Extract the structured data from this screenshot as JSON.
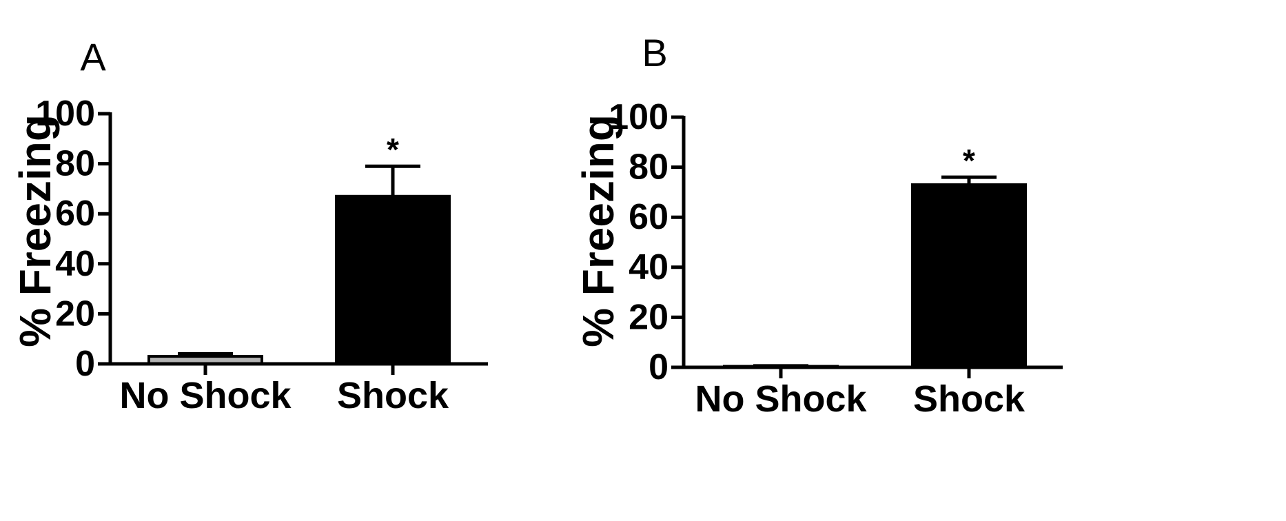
{
  "chart_data": [
    {
      "type": "bar",
      "panel": "A",
      "ylabel": "% Freezing",
      "xlabel": "",
      "title": "",
      "ylim": [
        0,
        100
      ],
      "yticks": [
        "0",
        "20",
        "40",
        "60",
        "80",
        "100"
      ],
      "categories": [
        "No Shock",
        "Shock"
      ],
      "values": [
        3,
        67
      ],
      "errors": [
        1,
        12
      ],
      "significance": [
        "",
        "*"
      ],
      "colors": [
        "#b3b3b3",
        "#000000"
      ],
      "grid": false
    },
    {
      "type": "bar",
      "panel": "B",
      "ylabel": "% Freezing",
      "xlabel": "",
      "title": "",
      "ylim": [
        0,
        100
      ],
      "yticks": [
        "0",
        "20",
        "40",
        "60",
        "80",
        "100"
      ],
      "categories": [
        "No Shock",
        "Shock"
      ],
      "values": [
        0.4,
        73
      ],
      "errors": [
        0.2,
        3
      ],
      "significance": [
        "",
        "*"
      ],
      "colors": [
        "#b3b3b3",
        "#000000"
      ],
      "grid": false
    }
  ]
}
